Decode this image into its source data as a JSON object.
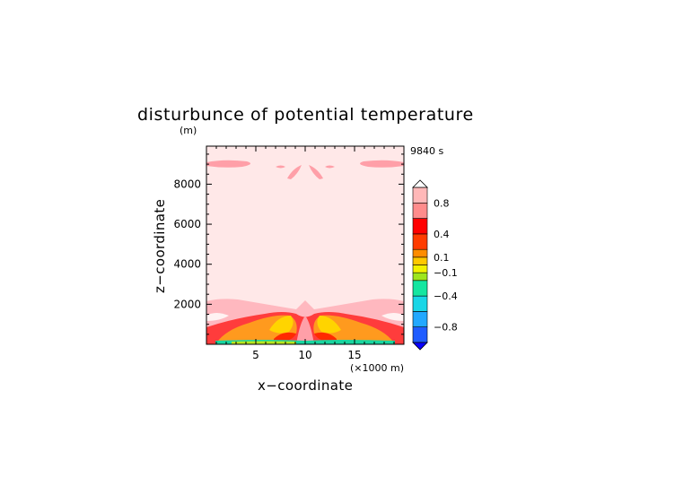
{
  "chart_data": {
    "type": "heatmap",
    "title": "disturbunce of potential temperature",
    "y_unit_label": "(m)",
    "time_label": "9840 s",
    "xlabel": "x−coordinate",
    "ylabel": "z−coordinate",
    "x_unit_label": "(×1000 m)",
    "xlim": [
      0,
      20
    ],
    "ylim": [
      0,
      9900
    ],
    "x_ticks": [
      5,
      10,
      15
    ],
    "x_tick_labels": [
      "5",
      "10",
      "15"
    ],
    "y_ticks": [
      2000,
      4000,
      6000,
      8000
    ],
    "y_tick_labels": [
      "2000",
      "4000",
      "6000",
      "8000"
    ],
    "colorbar": {
      "levels": [
        -1.0,
        -0.8,
        -0.6,
        -0.4,
        -0.2,
        -0.1,
        0.0,
        0.1,
        0.2,
        0.4,
        0.6,
        0.8,
        1.0
      ],
      "labels": [
        "0.8",
        "0.4",
        "0.1",
        "−0.1",
        "−0.4",
        "−0.8"
      ],
      "label_values": [
        0.8,
        0.4,
        0.1,
        -0.1,
        -0.4,
        -0.8
      ],
      "colors": [
        "#0a00ff",
        "#1f5cff",
        "#22a8ff",
        "#19d6e6",
        "#15e6a0",
        "#9ee61e",
        "#f2f200",
        "#ffc800",
        "#ff8c00",
        "#ff3c00",
        "#ff0000",
        "#ff8c8c",
        "#ffb8b8"
      ]
    }
  }
}
